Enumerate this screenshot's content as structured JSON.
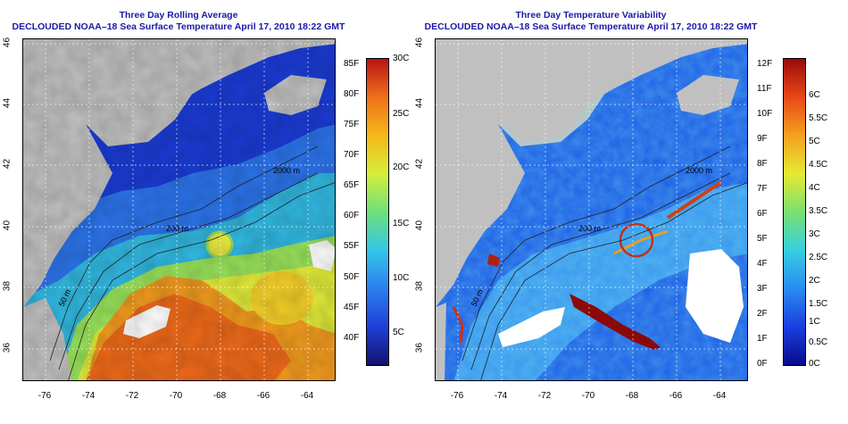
{
  "left_panel": {
    "title_line1": "Three Day Rolling Average",
    "title_line2": "DECLOUDED NOAA–18 Sea Surface Temperature April 17, 2010 18:22 GMT",
    "colorbar_f": [
      "85F",
      "80F",
      "75F",
      "70F",
      "65F",
      "60F",
      "55F",
      "50F",
      "45F",
      "40F"
    ],
    "colorbar_c": [
      "30C",
      "25C",
      "20C",
      "15C",
      "10C",
      "5C"
    ],
    "colors": [
      "#12126e",
      "#1f3fd6",
      "#2b7fef",
      "#34c6e8",
      "#6ee07c",
      "#d6ee3a",
      "#f5b818",
      "#f0701a",
      "#b81414"
    ]
  },
  "right_panel": {
    "title_line1": "Three Day Temperature Variability",
    "title_line2": "DECLOUDED NOAA–18 Sea Surface Temperature April 17, 2010 18:22 GMT",
    "colorbar_f": [
      "12F",
      "11F",
      "10F",
      "9F",
      "8F",
      "7F",
      "6F",
      "5F",
      "4F",
      "3F",
      "2F",
      "1F",
      "0F"
    ],
    "colorbar_c": [
      "6C",
      "5.5C",
      "5C",
      "4.5C",
      "4C",
      "3.5C",
      "3C",
      "2.5C",
      "2C",
      "1.5C",
      "1C",
      "0.5C",
      "0C"
    ],
    "colors": [
      "#0a0a8a",
      "#1a3fe0",
      "#2a8cf0",
      "#35d0e0",
      "#7ae070",
      "#e6ea30",
      "#f5a020",
      "#e84818",
      "#9a0a0a"
    ]
  },
  "axes": {
    "lat_labels": [
      "46",
      "44",
      "42",
      "40",
      "38",
      "36"
    ],
    "lon_labels": [
      "-76",
      "-74",
      "-72",
      "-70",
      "-68",
      "-66",
      "-64"
    ]
  },
  "contours": {
    "label_200m": "200 m",
    "label_50m": "50 m",
    "label_2000m": "2000 m"
  }
}
